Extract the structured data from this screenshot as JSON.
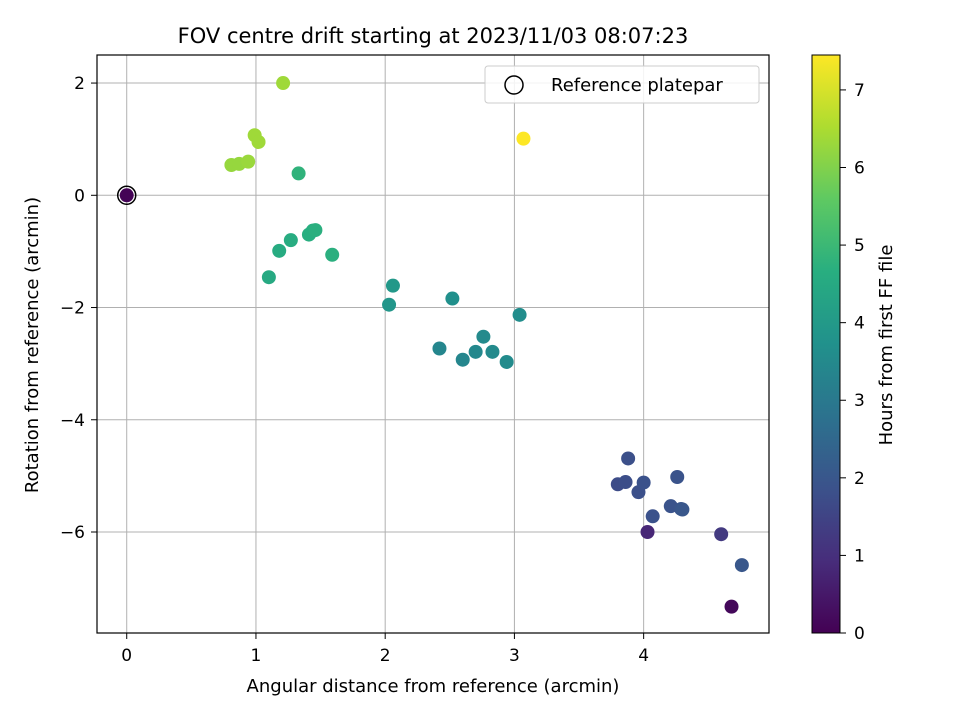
{
  "chart_data": {
    "type": "scatter",
    "title": "FOV centre drift starting at 2023/11/03 08:07:23",
    "xlabel": "Angular distance from reference (arcmin)",
    "ylabel": "Rotation from reference (arcmin)",
    "xlim": [
      -0.23,
      4.97
    ],
    "ylim": [
      -7.8,
      2.5
    ],
    "x_ticks": [
      0,
      1,
      2,
      3,
      4
    ],
    "y_ticks": [
      2,
      0,
      -2,
      -4,
      -6
    ],
    "x_tick_labels": [
      "0",
      "1",
      "2",
      "3",
      "4"
    ],
    "y_tick_labels": [
      "2",
      "0",
      "−2",
      "−4",
      "−6"
    ],
    "grid": true,
    "legend": {
      "position": "upper-right",
      "entries": [
        "Reference platepar"
      ]
    },
    "colorbar": {
      "label": "Hours from first FF file",
      "range": [
        0,
        7.45
      ],
      "ticks": [
        0,
        1,
        2,
        3,
        4,
        5,
        6,
        7
      ],
      "tick_labels": [
        "0",
        "1",
        "2",
        "3",
        "4",
        "5",
        "6",
        "7"
      ],
      "colormap": "viridis"
    },
    "reference_point": {
      "x": 0,
      "y": 0,
      "hours": 0
    },
    "points": [
      {
        "x": 0.0,
        "y": 0.0,
        "hours": 0.05
      },
      {
        "x": 4.68,
        "y": -7.33,
        "hours": 0.15
      },
      {
        "x": 4.03,
        "y": -6.0,
        "hours": 0.8
      },
      {
        "x": 4.6,
        "y": -6.04,
        "hours": 1.25
      },
      {
        "x": 3.8,
        "y": -5.15,
        "hours": 1.7
      },
      {
        "x": 3.86,
        "y": -5.11,
        "hours": 1.75
      },
      {
        "x": 3.88,
        "y": -4.69,
        "hours": 1.8
      },
      {
        "x": 3.96,
        "y": -5.29,
        "hours": 1.8
      },
      {
        "x": 4.0,
        "y": -5.12,
        "hours": 1.85
      },
      {
        "x": 4.07,
        "y": -5.72,
        "hours": 1.85
      },
      {
        "x": 4.21,
        "y": -5.54,
        "hours": 1.9
      },
      {
        "x": 4.26,
        "y": -5.02,
        "hours": 1.9
      },
      {
        "x": 4.29,
        "y": -5.59,
        "hours": 1.95
      },
      {
        "x": 4.3,
        "y": -5.6,
        "hours": 2.0
      },
      {
        "x": 4.76,
        "y": -6.59,
        "hours": 2.0
      },
      {
        "x": 2.42,
        "y": -2.73,
        "hours": 3.4
      },
      {
        "x": 2.6,
        "y": -2.93,
        "hours": 3.4
      },
      {
        "x": 2.7,
        "y": -2.79,
        "hours": 3.45
      },
      {
        "x": 2.76,
        "y": -2.52,
        "hours": 3.5
      },
      {
        "x": 2.83,
        "y": -2.79,
        "hours": 3.5
      },
      {
        "x": 2.94,
        "y": -2.97,
        "hours": 3.55
      },
      {
        "x": 3.04,
        "y": -2.13,
        "hours": 3.6
      },
      {
        "x": 2.52,
        "y": -1.84,
        "hours": 3.7
      },
      {
        "x": 2.03,
        "y": -1.95,
        "hours": 3.9
      },
      {
        "x": 2.06,
        "y": -1.61,
        "hours": 3.95
      },
      {
        "x": 1.1,
        "y": -1.46,
        "hours": 4.5
      },
      {
        "x": 1.18,
        "y": -0.99,
        "hours": 4.55
      },
      {
        "x": 1.27,
        "y": -0.8,
        "hours": 4.6
      },
      {
        "x": 1.41,
        "y": -0.7,
        "hours": 4.65
      },
      {
        "x": 1.44,
        "y": -0.63,
        "hours": 4.65
      },
      {
        "x": 1.46,
        "y": -0.62,
        "hours": 4.7
      },
      {
        "x": 1.59,
        "y": -1.06,
        "hours": 4.7
      },
      {
        "x": 1.33,
        "y": 0.39,
        "hours": 4.8
      },
      {
        "x": 0.81,
        "y": 0.54,
        "hours": 6.25
      },
      {
        "x": 0.87,
        "y": 0.56,
        "hours": 6.25
      },
      {
        "x": 0.94,
        "y": 0.6,
        "hours": 6.3
      },
      {
        "x": 0.99,
        "y": 1.07,
        "hours": 6.35
      },
      {
        "x": 1.02,
        "y": 0.95,
        "hours": 6.35
      },
      {
        "x": 1.21,
        "y": 2.0,
        "hours": 6.35
      },
      {
        "x": 3.07,
        "y": 1.01,
        "hours": 7.45
      }
    ]
  }
}
